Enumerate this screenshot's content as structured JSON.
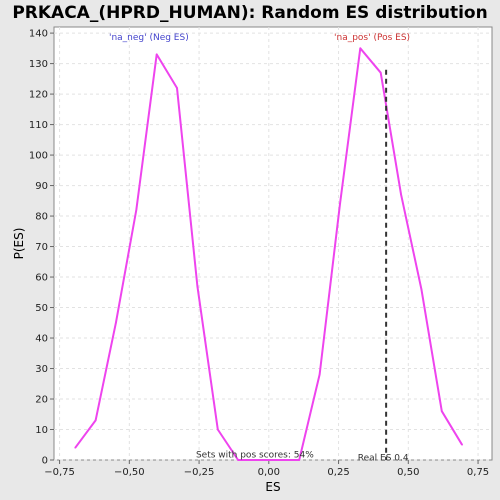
{
  "chart_data": {
    "type": "line",
    "title": "PRKACA_(HPRD_HUMAN): Random ES distribution",
    "xlabel": "ES",
    "ylabel": "P(ES)",
    "xlim": [
      -0.77,
      0.8
    ],
    "ylim": [
      0,
      142
    ],
    "x_ticks": [
      -0.75,
      -0.5,
      -0.25,
      0.0,
      0.25,
      0.5,
      0.75
    ],
    "x_tick_labels": [
      "−0,75",
      "−0,50",
      "−0,25",
      "0,00",
      "0,25",
      "0,50",
      "0,75"
    ],
    "y_ticks": [
      0,
      10,
      20,
      30,
      40,
      50,
      60,
      70,
      80,
      90,
      100,
      110,
      120,
      130,
      140
    ],
    "grid": true,
    "series": [
      {
        "color": "#ee44ee",
        "x": [
          -0.694,
          -0.621,
          -0.548,
          -0.475,
          -0.402,
          -0.329,
          -0.256,
          -0.183,
          -0.11,
          -0.037,
          0.036,
          0.109,
          0.182,
          0.255,
          0.328,
          0.401,
          0.474,
          0.547,
          0.62,
          0.693
        ],
        "y": [
          4,
          13,
          45,
          82,
          133,
          122,
          57,
          10,
          0,
          0,
          0,
          0,
          28,
          84,
          135,
          127,
          87,
          56,
          16,
          5
        ]
      }
    ],
    "annotations": {
      "neg": {
        "text": "'na_neg' (Neg ES)",
        "color": "#4444cc"
      },
      "pos": {
        "text": "'na_pos' (Pos ES)",
        "color": "#cc3333"
      },
      "sets_with_pos": "Sets with pos scores: 54%",
      "real_es_label": "Real ES 0.4",
      "real_es_value": 0.4205
    }
  }
}
